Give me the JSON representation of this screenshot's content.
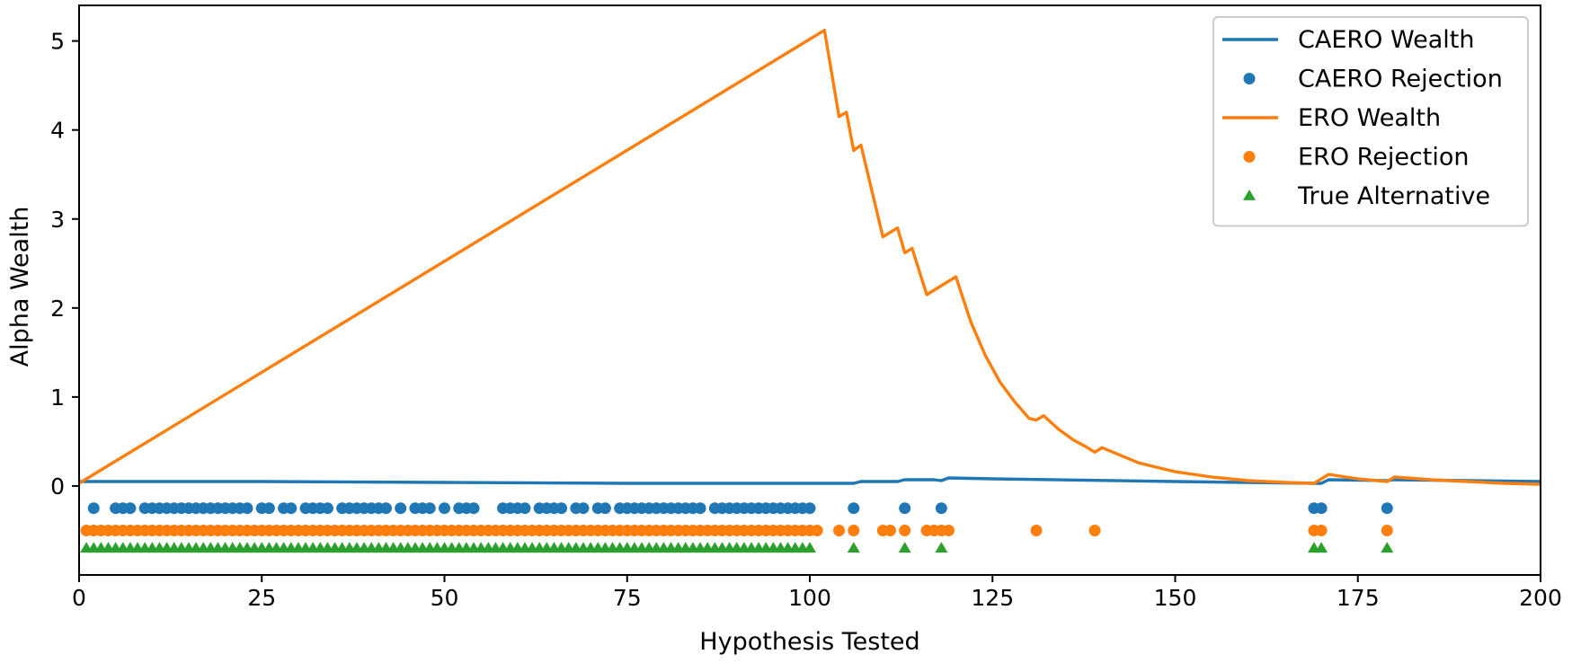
{
  "chart_data": {
    "type": "line",
    "title": "",
    "xlabel": "Hypothesis Tested",
    "ylabel": "Alpha Wealth",
    "xlim": [
      0,
      200
    ],
    "ylim": [
      -1,
      5.4
    ],
    "xticks": [
      0,
      25,
      50,
      75,
      100,
      125,
      150,
      175,
      200
    ],
    "yticks": [
      0,
      1,
      2,
      3,
      4,
      5
    ],
    "grid": false,
    "legend_position": "top-right",
    "colors": {
      "blue": "#1f77b4",
      "orange": "#ff7f0e",
      "green": "#2ca02c"
    },
    "series": [
      {
        "name": "CAERO Wealth",
        "kind": "line",
        "color": "#1f77b4",
        "x": [
          0,
          25,
          50,
          75,
          101,
          106,
          107,
          112,
          113,
          117,
          118,
          119,
          125,
          150,
          169,
          170,
          171,
          179,
          180,
          200
        ],
        "y": [
          0.05,
          0.05,
          0.04,
          0.03,
          0.03,
          0.03,
          0.05,
          0.05,
          0.07,
          0.07,
          0.06,
          0.09,
          0.08,
          0.05,
          0.03,
          0.03,
          0.07,
          0.06,
          0.07,
          0.05
        ]
      },
      {
        "name": "CAERO Rejection",
        "kind": "scatter",
        "marker": "circle",
        "color": "#1f77b4",
        "y_level": -0.25,
        "x": [
          2,
          5,
          6,
          7,
          9,
          10,
          11,
          12,
          13,
          14,
          15,
          16,
          17,
          18,
          19,
          20,
          21,
          22,
          23,
          25,
          26,
          28,
          29,
          31,
          32,
          33,
          34,
          36,
          37,
          38,
          39,
          40,
          41,
          42,
          44,
          46,
          47,
          48,
          50,
          52,
          53,
          54,
          58,
          59,
          60,
          61,
          63,
          64,
          65,
          66,
          68,
          69,
          71,
          72,
          74,
          75,
          76,
          77,
          78,
          79,
          80,
          81,
          82,
          83,
          84,
          85,
          87,
          88,
          89,
          90,
          91,
          92,
          93,
          94,
          95,
          96,
          97,
          98,
          99,
          100,
          106,
          113,
          118,
          169,
          170,
          179
        ]
      },
      {
        "name": "ERO Wealth",
        "kind": "line",
        "color": "#ff7f0e",
        "x": [
          0,
          102,
          104,
          105,
          106,
          107,
          110,
          112,
          113,
          114,
          116,
          118,
          120,
          122,
          124,
          126,
          128,
          130,
          131,
          132,
          134,
          136,
          138,
          139,
          140,
          145,
          150,
          155,
          160,
          165,
          169,
          171,
          175,
          179,
          180,
          185,
          190,
          195,
          200
        ],
        "y": [
          0.03,
          5.12,
          4.15,
          4.2,
          3.77,
          3.83,
          2.8,
          2.9,
          2.62,
          2.67,
          2.15,
          2.25,
          2.35,
          1.85,
          1.47,
          1.17,
          0.95,
          0.76,
          0.74,
          0.79,
          0.64,
          0.52,
          0.43,
          0.38,
          0.43,
          0.26,
          0.16,
          0.1,
          0.06,
          0.04,
          0.03,
          0.13,
          0.08,
          0.05,
          0.1,
          0.07,
          0.05,
          0.03,
          0.02
        ]
      },
      {
        "name": "ERO Rejection",
        "kind": "scatter",
        "marker": "circle",
        "color": "#ff7f0e",
        "y_level": -0.5,
        "x": [
          1,
          2,
          3,
          4,
          5,
          6,
          7,
          8,
          9,
          10,
          11,
          12,
          13,
          14,
          15,
          16,
          17,
          18,
          19,
          20,
          21,
          22,
          23,
          24,
          25,
          26,
          27,
          28,
          29,
          30,
          31,
          32,
          33,
          34,
          35,
          36,
          37,
          38,
          39,
          40,
          41,
          42,
          43,
          44,
          45,
          46,
          47,
          48,
          49,
          50,
          51,
          52,
          53,
          54,
          55,
          56,
          57,
          58,
          59,
          60,
          61,
          62,
          63,
          64,
          65,
          66,
          67,
          68,
          69,
          70,
          71,
          72,
          73,
          74,
          75,
          76,
          77,
          78,
          79,
          80,
          81,
          82,
          83,
          84,
          85,
          86,
          87,
          88,
          89,
          90,
          91,
          92,
          93,
          94,
          95,
          96,
          97,
          98,
          99,
          100,
          101,
          104,
          106,
          110,
          111,
          113,
          116,
          117,
          118,
          119,
          131,
          139,
          169,
          170,
          179
        ]
      },
      {
        "name": "True Alternative",
        "kind": "scatter",
        "marker": "triangle",
        "color": "#2ca02c",
        "y_level": -0.7,
        "x": [
          1,
          2,
          3,
          4,
          5,
          6,
          7,
          8,
          9,
          10,
          11,
          12,
          13,
          14,
          15,
          16,
          17,
          18,
          19,
          20,
          21,
          22,
          23,
          24,
          25,
          26,
          27,
          28,
          29,
          30,
          31,
          32,
          33,
          34,
          35,
          36,
          37,
          38,
          39,
          40,
          41,
          42,
          43,
          44,
          45,
          46,
          47,
          48,
          49,
          50,
          51,
          52,
          53,
          54,
          55,
          56,
          57,
          58,
          59,
          60,
          61,
          62,
          63,
          64,
          65,
          66,
          67,
          68,
          69,
          70,
          71,
          72,
          73,
          74,
          75,
          76,
          77,
          78,
          79,
          80,
          81,
          82,
          83,
          84,
          85,
          86,
          87,
          88,
          89,
          90,
          91,
          92,
          93,
          94,
          95,
          96,
          97,
          98,
          99,
          100,
          106,
          113,
          118,
          169,
          170,
          179
        ]
      }
    ]
  }
}
